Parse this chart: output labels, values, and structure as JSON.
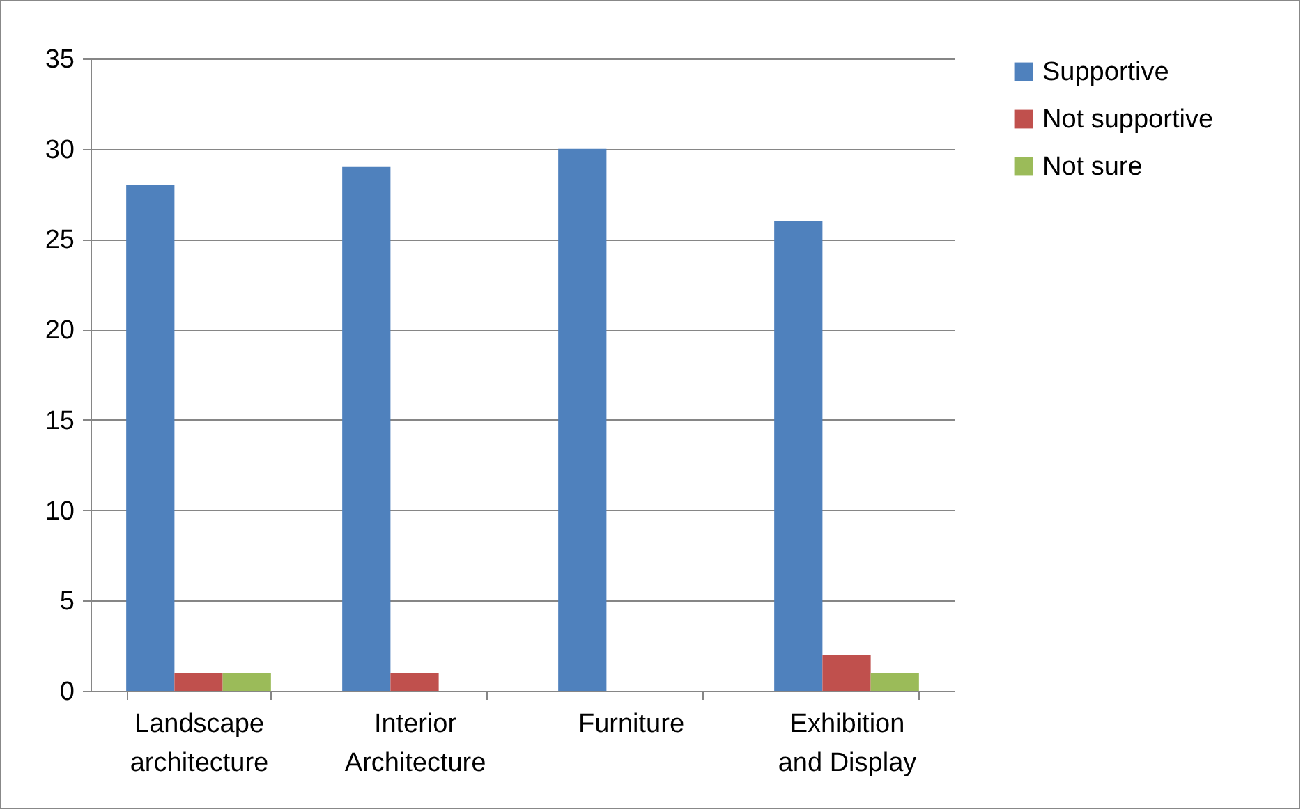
{
  "chart_data": {
    "type": "bar",
    "categories": [
      "Landscape architecture",
      "Interior Architecture",
      "Furniture",
      "Exhibition and Display"
    ],
    "series": [
      {
        "name": "Supportive",
        "color": "#4f81bd",
        "values": [
          28,
          29,
          30,
          26
        ]
      },
      {
        "name": "Not supportive",
        "color": "#c0504d",
        "values": [
          1,
          1,
          0,
          2
        ]
      },
      {
        "name": "Not sure",
        "color": "#9bbb59",
        "values": [
          1,
          0,
          0,
          1
        ]
      }
    ],
    "ylim": [
      0,
      35
    ],
    "yticks": [
      0,
      5,
      10,
      15,
      20,
      25,
      30,
      35
    ],
    "grid": "y",
    "legend": "right"
  }
}
